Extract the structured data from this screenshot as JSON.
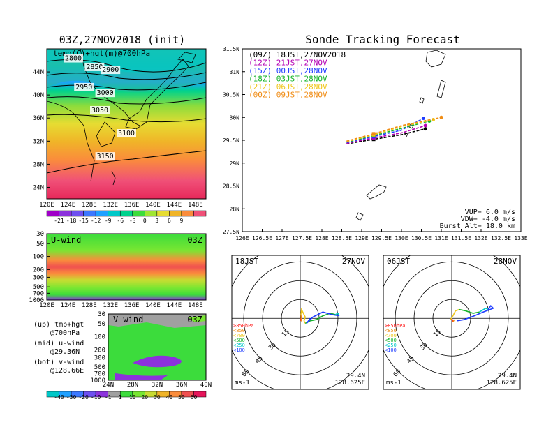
{
  "left_title": "03Z,27NOV2018 (init)",
  "right_title": "Sonde Tracking Forecast",
  "map": {
    "field_label": "temp(C)+hgt(m)@700hPa",
    "lat_ticks": [
      "44N",
      "40N",
      "36N",
      "32N",
      "28N",
      "24N"
    ],
    "lon_ticks": [
      "120E",
      "124E",
      "128E",
      "132E",
      "136E",
      "140E",
      "144E",
      "148E"
    ],
    "contour_labels": [
      "2800",
      "2850",
      "2900",
      "2950",
      "3000",
      "3050",
      "3100",
      "3150"
    ]
  },
  "temp_colorbar": {
    "labels": [
      "-21",
      "-18",
      "-15",
      "-12",
      "-9",
      "-6",
      "-3",
      "0",
      "3",
      "6",
      "9"
    ],
    "colors": [
      "#a000c8",
      "#8c32dc",
      "#6e50f0",
      "#3c78ff",
      "#1ea0ff",
      "#00c8c8",
      "#00d28c",
      "#3cdc3c",
      "#a0e632",
      "#e6dc32",
      "#f0b428",
      "#fa8c3c",
      "#f05078"
    ]
  },
  "uwind": {
    "label": "U-wind",
    "time": "03Z",
    "y_ticks": [
      "30",
      "50",
      "100",
      "200",
      "300",
      "500",
      "700",
      "1000"
    ],
    "x_ticks": [
      "120E",
      "124E",
      "128E",
      "132E",
      "136E",
      "140E",
      "144E",
      "148E"
    ]
  },
  "vwind": {
    "label": "V-wind",
    "time": "03Z",
    "y_ticks": [
      "30",
      "50",
      "100",
      "200",
      "300",
      "500",
      "700",
      "1000"
    ],
    "x_ticks": [
      "24N",
      "28N",
      "32N",
      "36N",
      "40N"
    ]
  },
  "legend_notes": [
    {
      "head": "(up) tmp+hgt",
      "sub": "@700hPa"
    },
    {
      "head": "(mid) u-wind",
      "sub": "@29.36N"
    },
    {
      "head": "(bot) v-wind",
      "sub": "@128.66E"
    }
  ],
  "wind_colorbar": {
    "labels": [
      "-40",
      "-30",
      "-20",
      "-10",
      "-1",
      "1",
      "10",
      "20",
      "30",
      "40",
      "50",
      "60"
    ],
    "colors": [
      "#00c8c8",
      "#1ea0ff",
      "#3c78ff",
      "#6e50f0",
      "#8c32dc",
      "#a0a0a0",
      "#3cdc3c",
      "#78e632",
      "#c8dc32",
      "#f0b428",
      "#fa8c3c",
      "#f05050",
      "#e6145a"
    ]
  },
  "track": {
    "legend": [
      {
        "text": "(09Z) 18JST,27NOV2018",
        "color": "#000000"
      },
      {
        "text": "(12Z) 21JST,27NOV",
        "color": "#b400b4"
      },
      {
        "text": "(15Z) 00JST,28NOV",
        "color": "#1e3cff"
      },
      {
        "text": "(18Z) 03JST,28NOV",
        "color": "#14b428"
      },
      {
        "text": "(21Z) 06JST,28NOV",
        "color": "#f0c81e"
      },
      {
        "text": "(00Z) 09JST,28NOV",
        "color": "#f08c14"
      }
    ],
    "y_ticks": [
      "31.5N",
      "31N",
      "30.5N",
      "30N",
      "29.5N",
      "29N",
      "28.5N",
      "28N",
      "27.5N"
    ],
    "x_ticks": [
      "126E",
      "126.5E",
      "127E",
      "127.5E",
      "128E",
      "128.5E",
      "129E",
      "129.5E",
      "130E",
      "130.5E",
      "131E",
      "131.5E",
      "132E",
      "132.5E",
      "133E"
    ],
    "params": [
      "VUP=  6.0 m/s",
      "VDW= -4.0 m/s",
      "Burst Alt= 18.0 km"
    ]
  },
  "hodo_left": {
    "time": "18JST",
    "date": "27NOV",
    "lat": "29.4N",
    "lon": "128.625E",
    "unit": "ms-1",
    "ring_labels": [
      "15",
      "30",
      "45",
      "60"
    ]
  },
  "hodo_right": {
    "time": "06JST",
    "date": "28NOV",
    "lat": "29.4N",
    "lon": "128.625E",
    "unit": "ms-1",
    "ring_labels": [
      "15",
      "30",
      "45",
      "60"
    ]
  },
  "hodo_levels": [
    {
      "text": "≥850hPa",
      "color": "#ff1e1e"
    },
    {
      "text": "<850",
      "color": "#f08c14"
    },
    {
      "text": "<700",
      "color": "#f0c81e"
    },
    {
      "text": "<500",
      "color": "#14b428"
    },
    {
      "text": "<250",
      "color": "#00c8c8"
    },
    {
      "text": "<100",
      "color": "#1e3cff"
    }
  ],
  "chart_data": [
    {
      "type": "heatmap",
      "title": "03Z,27NOV2018 (init)",
      "subtitle": "temp(C)+hgt(m)@700hPa",
      "xlim": [
        120,
        150
      ],
      "ylim": [
        22,
        48
      ],
      "contours_m": [
        {
          "level": 2800,
          "label_at": [
            125,
            46
          ]
        },
        {
          "level": 2850,
          "label_at": [
            129,
            44.5
          ]
        },
        {
          "level": 2900,
          "label_at": [
            132,
            44
          ]
        },
        {
          "level": 2950,
          "label_at": [
            127,
            41
          ]
        },
        {
          "level": 3000,
          "label_at": [
            131,
            40
          ]
        },
        {
          "level": 3050,
          "label_at": [
            130,
            37
          ]
        },
        {
          "level": 3100,
          "label_at": [
            135,
            33
          ]
        },
        {
          "level": 3150,
          "label_at": [
            131,
            29
          ]
        }
      ]
    },
    {
      "type": "line",
      "title": "Sonde Tracking Forecast",
      "xlim": [
        126,
        133
      ],
      "ylim": [
        27.5,
        31.5
      ],
      "series": [
        {
          "name": "(09Z) 18JST,27NOV2018",
          "color": "#000000",
          "x": [
            128.62,
            129.3,
            130.0,
            130.6
          ],
          "y": [
            29.42,
            29.52,
            29.62,
            29.75
          ]
        },
        {
          "name": "(12Z) 21JST,27NOV",
          "color": "#b400b4",
          "x": [
            128.62,
            129.3,
            130.0,
            130.6
          ],
          "y": [
            29.43,
            29.55,
            29.66,
            29.82
          ]
        },
        {
          "name": "(15Z) 00JST,28NOV",
          "color": "#1e3cff",
          "x": [
            128.62,
            129.3,
            130.0,
            130.55
          ],
          "y": [
            29.45,
            29.58,
            29.72,
            29.98
          ]
        },
        {
          "name": "(18Z) 03JST,28NOV",
          "color": "#14b428",
          "x": [
            128.62,
            129.3,
            130.0,
            130.7
          ],
          "y": [
            29.46,
            29.6,
            29.76,
            29.92
          ]
        },
        {
          "name": "(21Z) 06JST,28NOV",
          "color": "#f0c81e",
          "x": [
            128.62,
            129.3,
            130.0,
            130.8
          ],
          "y": [
            29.47,
            29.62,
            29.8,
            29.95
          ]
        },
        {
          "name": "(00Z) 09JST,28NOV",
          "color": "#f08c14",
          "x": [
            128.62,
            129.3,
            130.0,
            131.0
          ],
          "y": [
            29.48,
            29.64,
            29.82,
            30.0
          ]
        }
      ]
    },
    {
      "type": "line",
      "title": "18JST 27NOV",
      "xlabel": "ms-1",
      "series": [
        {
          "name": "≥850hPa",
          "color": "#ff1e1e",
          "x": [
            0,
            0.5
          ],
          "y": [
            0,
            -2
          ]
        },
        {
          "name": "<850",
          "color": "#f08c14",
          "x": [
            0.5,
            1,
            0.5
          ],
          "y": [
            -2,
            -2,
            3
          ]
        },
        {
          "name": "<700",
          "color": "#f0c81e",
          "x": [
            0.5,
            1,
            3,
            4,
            3,
            4
          ],
          "y": [
            3,
            7,
            3,
            1,
            -2,
            -4
          ]
        },
        {
          "name": "<500",
          "color": "#14b428",
          "x": [
            4,
            8,
            13,
            18,
            24,
            28
          ],
          "y": [
            -4,
            -2,
            -1,
            2,
            4,
            3
          ]
        },
        {
          "name": "<250",
          "color": "#00c8c8",
          "x": [
            28,
            30,
            31
          ],
          "y": [
            3,
            4,
            2
          ]
        },
        {
          "name": "<100",
          "color": "#1e3cff",
          "x": [
            31,
            25,
            18,
            10,
            5,
            8
          ],
          "y": [
            2,
            3,
            5,
            1,
            -4,
            0
          ]
        }
      ]
    },
    {
      "type": "line",
      "title": "06JST 28NOV",
      "xlabel": "ms-1",
      "series": [
        {
          "name": "≥850hPa",
          "color": "#ff1e1e",
          "x": [
            0,
            1
          ],
          "y": [
            0,
            -3
          ]
        },
        {
          "name": "<850",
          "color": "#f08c14",
          "x": [
            1,
            2
          ],
          "y": [
            -3,
            -1
          ]
        },
        {
          "name": "<700",
          "color": "#f0c81e",
          "x": [
            -1,
            1,
            3,
            6
          ],
          "y": [
            -1,
            2,
            6,
            7
          ]
        },
        {
          "name": "<500",
          "color": "#14b428",
          "x": [
            6,
            11,
            17,
            22
          ],
          "y": [
            7,
            6,
            4,
            5
          ]
        },
        {
          "name": "<250",
          "color": "#00c8c8",
          "x": [
            22,
            27,
            29
          ],
          "y": [
            5,
            8,
            7
          ]
        },
        {
          "name": "<100",
          "color": "#1e3cff",
          "x": [
            29,
            31,
            33,
            25,
            18,
            10,
            4
          ],
          "y": [
            7,
            10,
            8,
            5,
            2,
            -1,
            -2
          ]
        }
      ]
    }
  ]
}
